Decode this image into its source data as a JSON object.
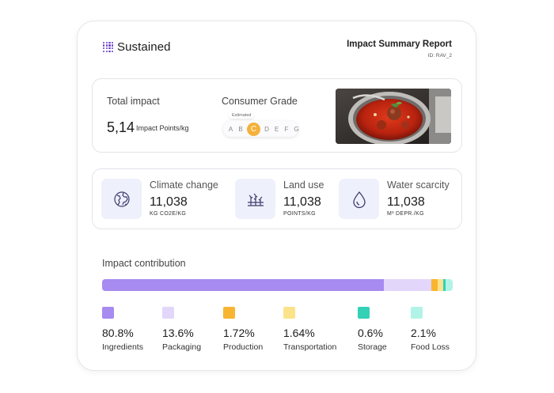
{
  "header": {
    "brand": "Sustained",
    "report_title": "Impact Summary Report",
    "report_id": "ID: RAV_2"
  },
  "summary": {
    "total_label": "Total impact",
    "total_value": "5,14",
    "total_unit": "Impact Points/kg",
    "grade_label": "Consumer Grade",
    "grade_badge": "Estimated",
    "grades": [
      "A",
      "B",
      "C",
      "D",
      "E",
      "F",
      "G"
    ],
    "active_grade": "C"
  },
  "metrics": [
    {
      "title": "Climate change",
      "value": "11,038",
      "unit": "KG CO2E/KG",
      "icon": "globe-icon"
    },
    {
      "title": "Land use",
      "value": "11,038",
      "unit": "POINTS/KG",
      "icon": "field-icon"
    },
    {
      "title": "Water scarcity",
      "value": "11,038",
      "unit": "M³ DEPR./KG",
      "icon": "water-drop-icon"
    }
  ],
  "contribution": {
    "title": "Impact contribution",
    "items": [
      {
        "pct": "80.8%",
        "name": "Ingredients",
        "share": 80.8,
        "color": "#a78bf0"
      },
      {
        "pct": "13.6%",
        "name": "Packaging",
        "share": 13.6,
        "color": "#e3d6fb"
      },
      {
        "pct": "1.72%",
        "name": "Production",
        "share": 1.72,
        "color": "#f8b531"
      },
      {
        "pct": "1.64%",
        "name": "Transportation",
        "share": 1.64,
        "color": "#fbe38c"
      },
      {
        "pct": "0.6%",
        "name": "Storage",
        "share": 0.6,
        "color": "#33d1b6"
      },
      {
        "pct": "2.1%",
        "name": "Food Loss",
        "share": 2.1,
        "color": "#b2f3e7"
      }
    ]
  }
}
